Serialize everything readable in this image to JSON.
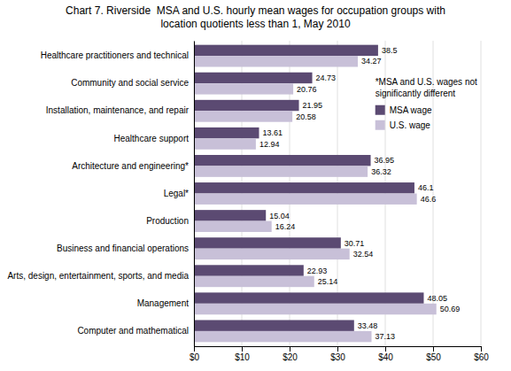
{
  "chart_data": {
    "type": "bar",
    "orientation": "horizontal",
    "title": "Chart 7. Riverside  MSA and U.S. hourly mean wages for occupation groups with\nlocation quotients less than 1, May 2010",
    "categories": [
      "Computer and mathematical",
      "Management",
      "Arts, design, entertainment, sports, and media",
      "Business and financial operations",
      "Production",
      "Legal*",
      "Architecture and engineering*",
      "Healthcare support",
      "Installation, maintenance, and repair",
      "Community and social service",
      "Healthcare practitioners and technical"
    ],
    "series": [
      {
        "name": "MSA wage",
        "color": "#5b4a72",
        "values": [
          33.48,
          48.05,
          22.93,
          30.71,
          15.04,
          46.1,
          36.95,
          13.61,
          21.95,
          24.73,
          38.5
        ]
      },
      {
        "name": "U.S. wage",
        "color": "#c8c0d8",
        "values": [
          37.13,
          50.69,
          25.14,
          32.54,
          16.24,
          46.6,
          36.32,
          12.94,
          20.58,
          20.76,
          34.27
        ]
      }
    ],
    "xlim": [
      0,
      60
    ],
    "xticks": [
      {
        "value": 0,
        "label": "$0"
      },
      {
        "value": 10,
        "label": "$10"
      },
      {
        "value": 20,
        "label": "$20"
      },
      {
        "value": 30,
        "label": "$30"
      },
      {
        "value": 40,
        "label": "$40"
      },
      {
        "value": 50,
        "label": "$50"
      },
      {
        "value": 60,
        "label": "$60"
      }
    ],
    "grid": true,
    "data_labels": true,
    "legend": "right",
    "annotations": [
      "*MSA and U.S. wages not\nsignificantly different"
    ]
  }
}
